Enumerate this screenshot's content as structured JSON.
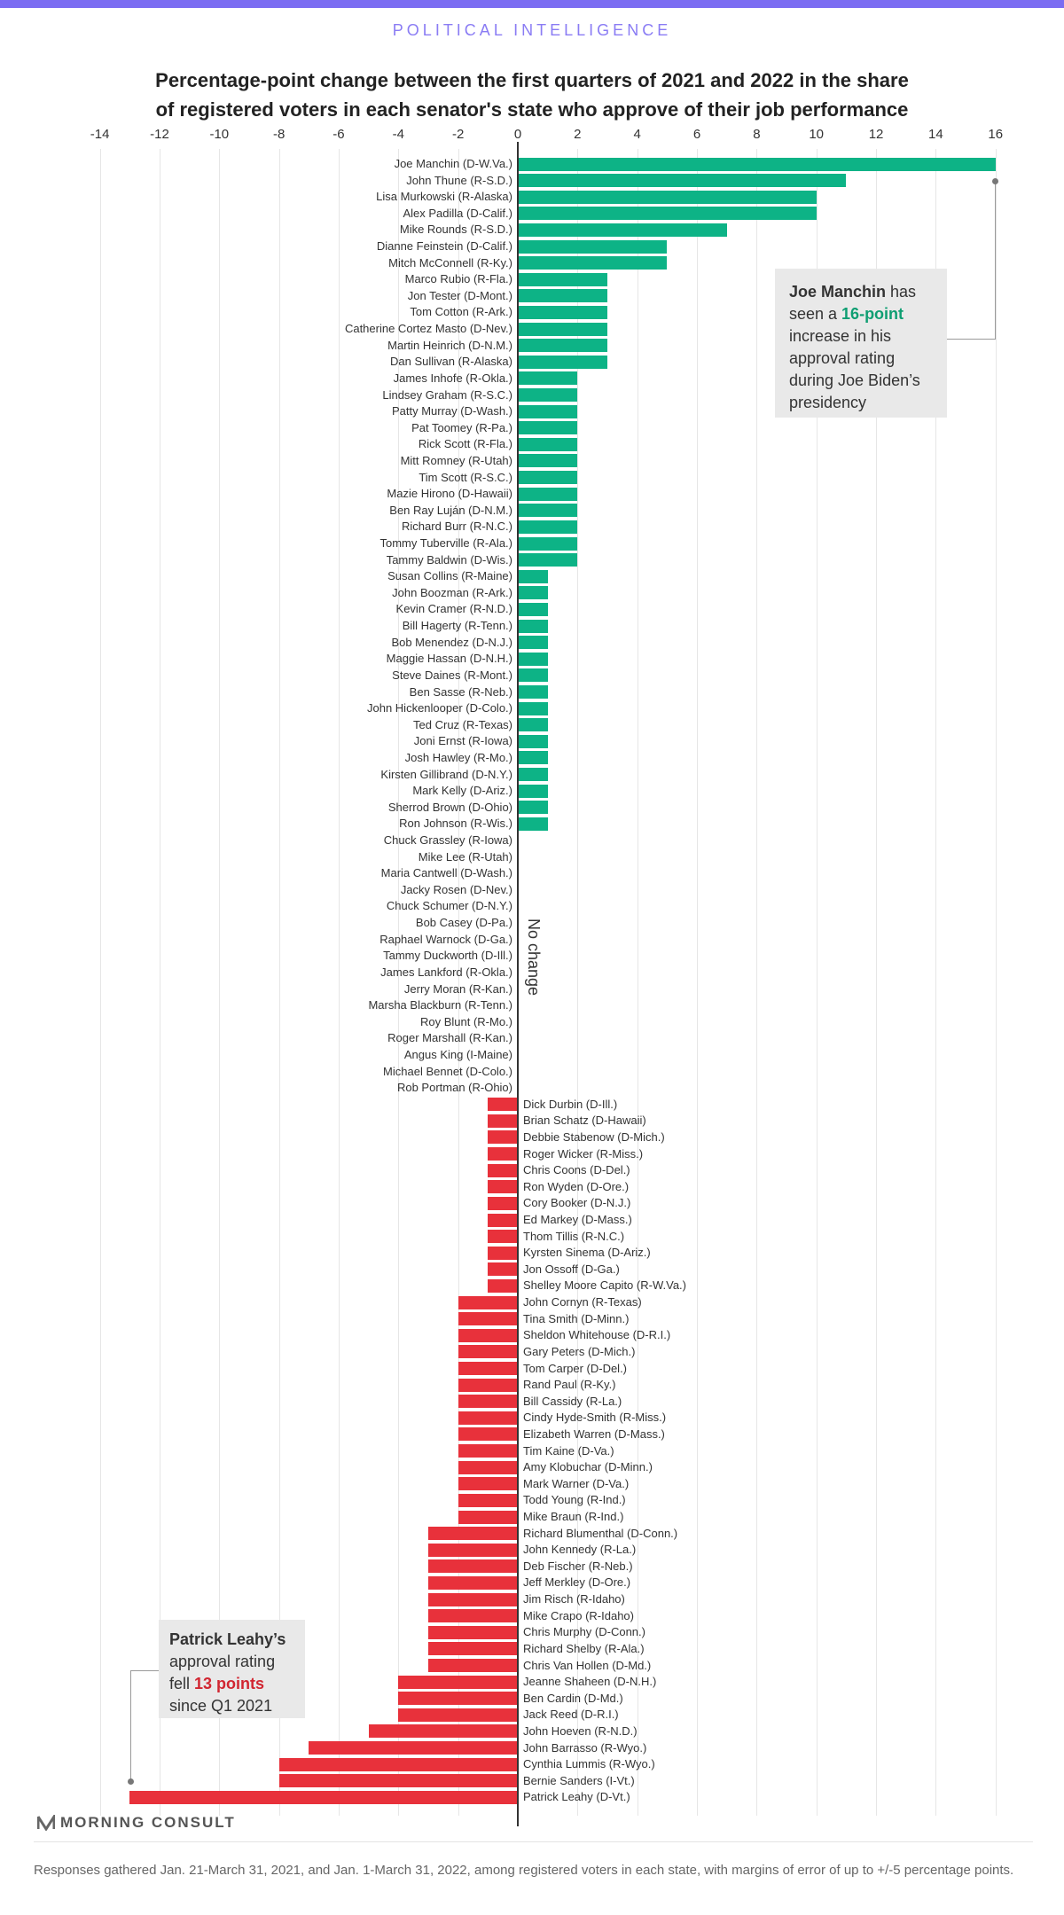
{
  "header": {
    "kicker": "POLITICAL INTELLIGENCE",
    "accent_color": "#7b6cf2"
  },
  "chart_data": {
    "type": "bar",
    "orientation": "horizontal",
    "title_line1": "Percentage-point change between the first quarters of 2021 and 2022 in the share",
    "title_line2": "of registered voters in each senator's state who approve of their job performance",
    "xlim": [
      -14,
      16
    ],
    "xticks": [
      "-14",
      "-12",
      "-10",
      "-8",
      "-6",
      "-4",
      "-2",
      "0",
      "2",
      "4",
      "6",
      "8",
      "10",
      "12",
      "14",
      "16"
    ],
    "grid": true,
    "colors": {
      "positive": "#0db386",
      "negative": "#e8313b"
    },
    "zero_label": "No change",
    "senators": [
      {
        "name": "Joe Manchin (D-W.Va.)",
        "value": 16
      },
      {
        "name": "John Thune (R-S.D.)",
        "value": 11
      },
      {
        "name": "Lisa Murkowski (R-Alaska)",
        "value": 10
      },
      {
        "name": "Alex Padilla (D-Calif.)",
        "value": 10
      },
      {
        "name": "Mike Rounds (R-S.D.)",
        "value": 7
      },
      {
        "name": "Dianne Feinstein (D-Calif.)",
        "value": 5
      },
      {
        "name": "Mitch McConnell (R-Ky.)",
        "value": 5
      },
      {
        "name": "Marco Rubio (R-Fla.)",
        "value": 3
      },
      {
        "name": "Jon Tester (D-Mont.)",
        "value": 3
      },
      {
        "name": "Tom Cotton (R-Ark.)",
        "value": 3
      },
      {
        "name": "Catherine Cortez Masto (D-Nev.)",
        "value": 3
      },
      {
        "name": "Martin Heinrich (D-N.M.)",
        "value": 3
      },
      {
        "name": "Dan Sullivan (R-Alaska)",
        "value": 3
      },
      {
        "name": "James Inhofe (R-Okla.)",
        "value": 2
      },
      {
        "name": "Lindsey Graham (R-S.C.)",
        "value": 2
      },
      {
        "name": "Patty Murray (D-Wash.)",
        "value": 2
      },
      {
        "name": "Pat Toomey (R-Pa.)",
        "value": 2
      },
      {
        "name": "Rick Scott (R-Fla.)",
        "value": 2
      },
      {
        "name": "Mitt Romney (R-Utah)",
        "value": 2
      },
      {
        "name": "Tim Scott (R-S.C.)",
        "value": 2
      },
      {
        "name": "Mazie Hirono (D-Hawaii)",
        "value": 2
      },
      {
        "name": "Ben Ray Luján (D-N.M.)",
        "value": 2
      },
      {
        "name": "Richard Burr (R-N.C.)",
        "value": 2
      },
      {
        "name": "Tommy Tuberville (R-Ala.)",
        "value": 2
      },
      {
        "name": "Tammy Baldwin (D-Wis.)",
        "value": 2
      },
      {
        "name": "Susan Collins (R-Maine)",
        "value": 1
      },
      {
        "name": "John Boozman (R-Ark.)",
        "value": 1
      },
      {
        "name": "Kevin Cramer (R-N.D.)",
        "value": 1
      },
      {
        "name": "Bill Hagerty (R-Tenn.)",
        "value": 1
      },
      {
        "name": "Bob Menendez (D-N.J.)",
        "value": 1
      },
      {
        "name": "Maggie Hassan (D-N.H.)",
        "value": 1
      },
      {
        "name": "Steve Daines (R-Mont.)",
        "value": 1
      },
      {
        "name": "Ben Sasse (R-Neb.)",
        "value": 1
      },
      {
        "name": "John Hickenlooper (D-Colo.)",
        "value": 1
      },
      {
        "name": "Ted Cruz (R-Texas)",
        "value": 1
      },
      {
        "name": "Joni Ernst (R-Iowa)",
        "value": 1
      },
      {
        "name": "Josh Hawley (R-Mo.)",
        "value": 1
      },
      {
        "name": "Kirsten Gillibrand (D-N.Y.)",
        "value": 1
      },
      {
        "name": "Mark Kelly (D-Ariz.)",
        "value": 1
      },
      {
        "name": "Sherrod Brown (D-Ohio)",
        "value": 1
      },
      {
        "name": "Ron Johnson (R-Wis.)",
        "value": 1
      },
      {
        "name": "Chuck Grassley (R-Iowa)",
        "value": 0
      },
      {
        "name": "Mike Lee (R-Utah)",
        "value": 0
      },
      {
        "name": "Maria Cantwell (D-Wash.)",
        "value": 0
      },
      {
        "name": "Jacky Rosen (D-Nev.)",
        "value": 0
      },
      {
        "name": "Chuck Schumer (D-N.Y.)",
        "value": 0
      },
      {
        "name": "Bob Casey (D-Pa.)",
        "value": 0
      },
      {
        "name": "Raphael Warnock (D-Ga.)",
        "value": 0
      },
      {
        "name": "Tammy Duckworth (D-Ill.)",
        "value": 0
      },
      {
        "name": "James Lankford (R-Okla.)",
        "value": 0
      },
      {
        "name": "Jerry Moran (R-Kan.)",
        "value": 0
      },
      {
        "name": "Marsha Blackburn (R-Tenn.)",
        "value": 0
      },
      {
        "name": "Roy Blunt (R-Mo.)",
        "value": 0
      },
      {
        "name": "Roger Marshall (R-Kan.)",
        "value": 0
      },
      {
        "name": "Angus King (I-Maine)",
        "value": 0
      },
      {
        "name": "Michael Bennet (D-Colo.)",
        "value": 0
      },
      {
        "name": "Rob Portman (R-Ohio)",
        "value": 0
      },
      {
        "name": "Dick Durbin (D-Ill.)",
        "value": -1
      },
      {
        "name": "Brian Schatz (D-Hawaii)",
        "value": -1
      },
      {
        "name": "Debbie Stabenow (D-Mich.)",
        "value": -1
      },
      {
        "name": "Roger Wicker (R-Miss.)",
        "value": -1
      },
      {
        "name": "Chris Coons (D-Del.)",
        "value": -1
      },
      {
        "name": "Ron Wyden (D-Ore.)",
        "value": -1
      },
      {
        "name": "Cory Booker (D-N.J.)",
        "value": -1
      },
      {
        "name": "Ed Markey (D-Mass.)",
        "value": -1
      },
      {
        "name": "Thom Tillis (R-N.C.)",
        "value": -1
      },
      {
        "name": "Kyrsten Sinema (D-Ariz.)",
        "value": -1
      },
      {
        "name": "Jon Ossoff (D-Ga.)",
        "value": -1
      },
      {
        "name": "Shelley Moore Capito (R-W.Va.)",
        "value": -1
      },
      {
        "name": "John Cornyn (R-Texas)",
        "value": -2
      },
      {
        "name": "Tina Smith (D-Minn.)",
        "value": -2
      },
      {
        "name": "Sheldon Whitehouse (D-R.I.)",
        "value": -2
      },
      {
        "name": "Gary Peters (D-Mich.)",
        "value": -2
      },
      {
        "name": "Tom Carper (D-Del.)",
        "value": -2
      },
      {
        "name": "Rand Paul (R-Ky.)",
        "value": -2
      },
      {
        "name": "Bill Cassidy (R-La.)",
        "value": -2
      },
      {
        "name": "Cindy Hyde-Smith (R-Miss.)",
        "value": -2
      },
      {
        "name": "Elizabeth Warren (D-Mass.)",
        "value": -2
      },
      {
        "name": "Tim Kaine (D-Va.)",
        "value": -2
      },
      {
        "name": "Amy Klobuchar (D-Minn.)",
        "value": -2
      },
      {
        "name": "Mark Warner (D-Va.)",
        "value": -2
      },
      {
        "name": "Todd Young (R-Ind.)",
        "value": -2
      },
      {
        "name": "Mike Braun (R-Ind.)",
        "value": -2
      },
      {
        "name": "Richard Blumenthal (D-Conn.)",
        "value": -3
      },
      {
        "name": "John Kennedy (R-La.)",
        "value": -3
      },
      {
        "name": "Deb Fischer (R-Neb.)",
        "value": -3
      },
      {
        "name": "Jeff Merkley (D-Ore.)",
        "value": -3
      },
      {
        "name": "Jim Risch (R-Idaho)",
        "value": -3
      },
      {
        "name": "Mike Crapo (R-Idaho)",
        "value": -3
      },
      {
        "name": "Chris Murphy (D-Conn.)",
        "value": -3
      },
      {
        "name": "Richard Shelby (R-Ala.)",
        "value": -3
      },
      {
        "name": "Chris Van Hollen (D-Md.)",
        "value": -3
      },
      {
        "name": "Jeanne Shaheen (D-N.H.)",
        "value": -4
      },
      {
        "name": "Ben Cardin (D-Md.)",
        "value": -4
      },
      {
        "name": "Jack Reed (D-R.I.)",
        "value": -4
      },
      {
        "name": "John Hoeven (R-N.D.)",
        "value": -5
      },
      {
        "name": "John Barrasso (R-Wyo.)",
        "value": -7
      },
      {
        "name": "Cynthia Lummis (R-Wyo.)",
        "value": -8
      },
      {
        "name": "Bernie Sanders (I-Vt.)",
        "value": -8
      },
      {
        "name": "Patrick Leahy (D-Vt.)",
        "value": -13
      }
    ],
    "annotations": {
      "manchin": {
        "bold": "Joe Manchin",
        "t1": " has seen a ",
        "highlight": "16-point",
        "t2": " increase in his approval rating during Joe Biden’s presidency"
      },
      "leahy": {
        "bold": "Patrick Leahy’s",
        "t1": " approval rating fell ",
        "highlight": "13 points",
        "t2": " since Q1 2021"
      }
    }
  },
  "footer": {
    "logo": "MORNING CONSULT",
    "note": "Responses gathered Jan. 21-March 31, 2021, and Jan. 1-March 31, 2022, among registered voters in each state, with margins of error of up to +/-5 percentage points."
  }
}
